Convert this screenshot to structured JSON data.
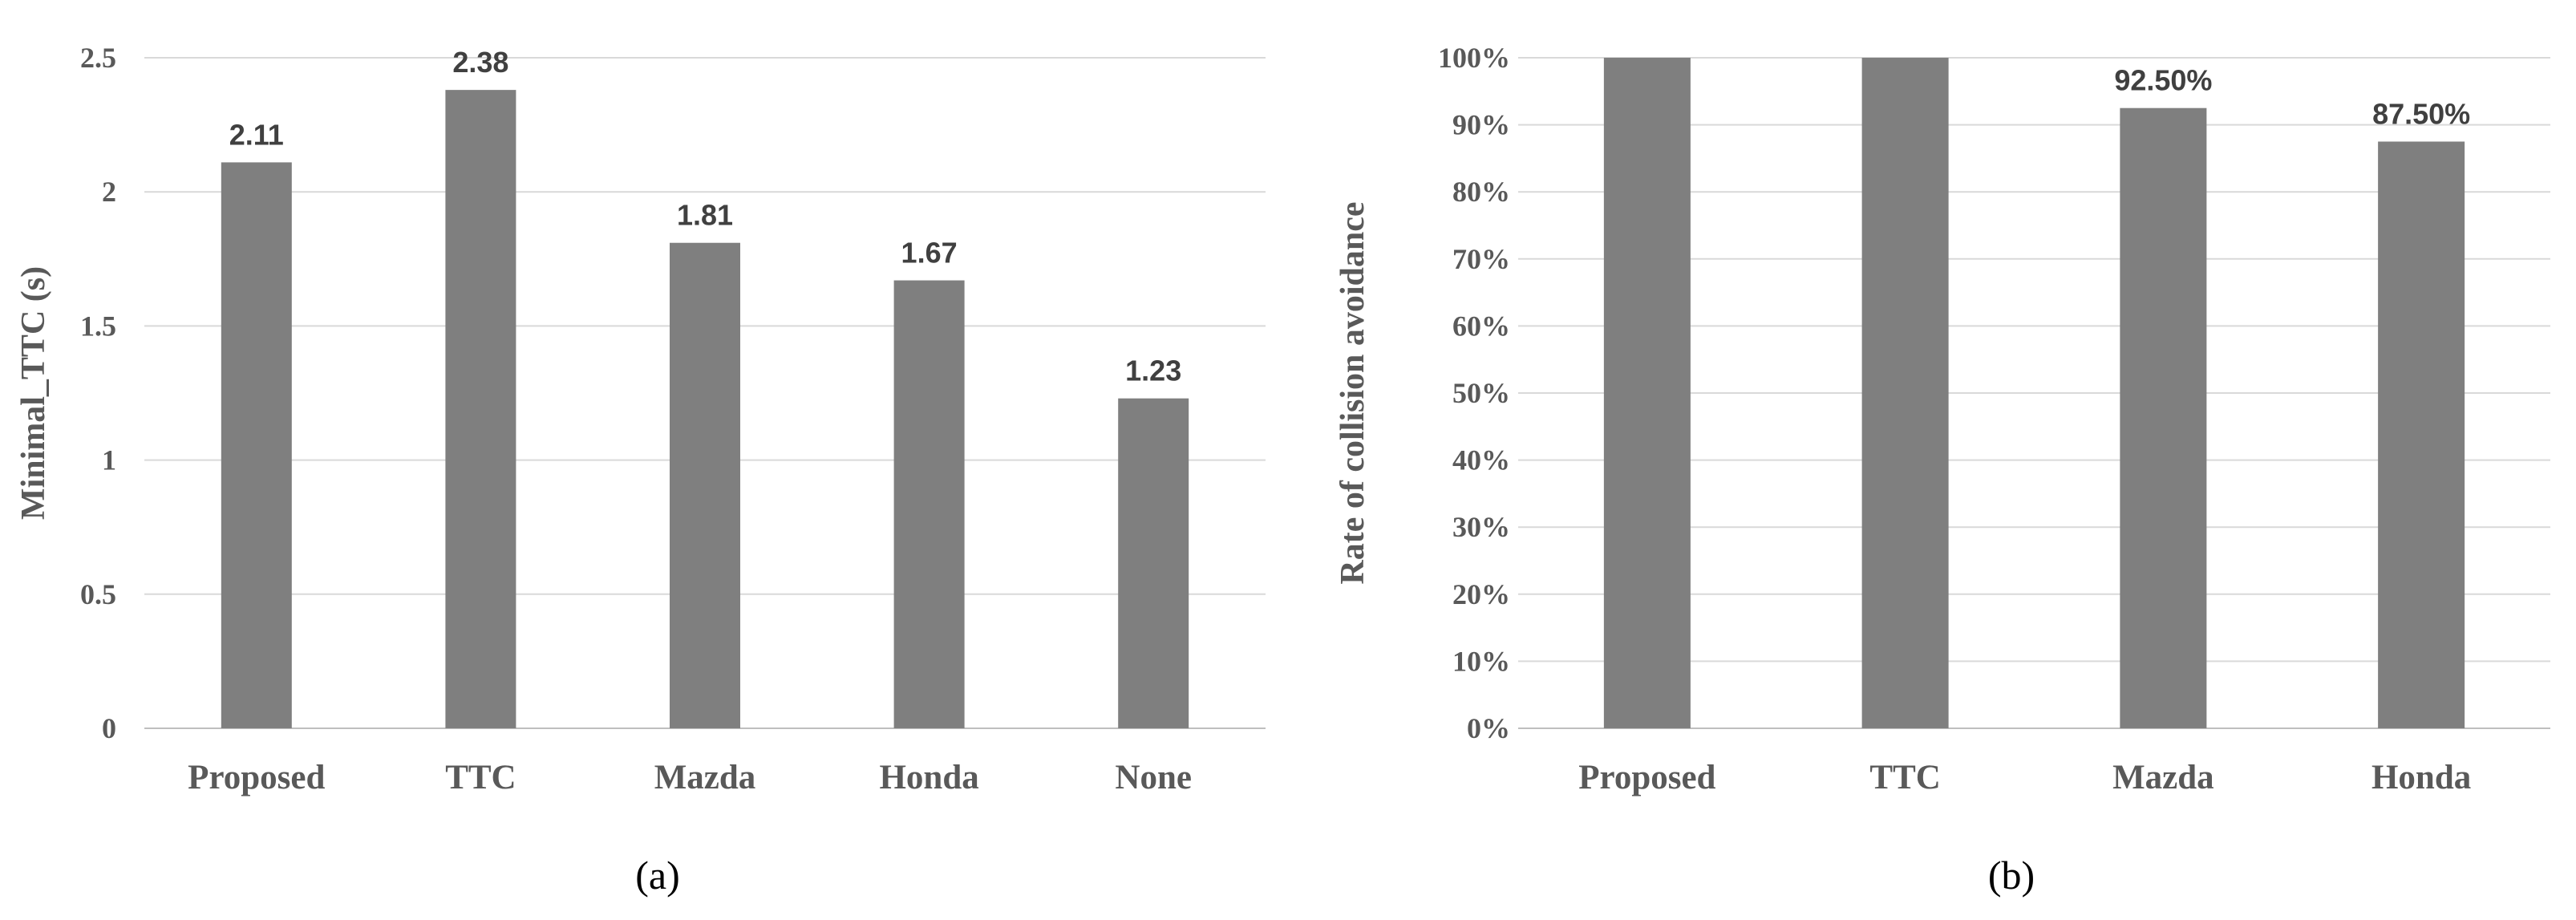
{
  "chart_data": [
    {
      "type": "bar",
      "categories": [
        "Proposed",
        "TTC",
        "Mazda",
        "Honda",
        "None"
      ],
      "values": [
        2.11,
        2.38,
        1.81,
        1.67,
        1.23
      ],
      "data_labels": [
        "2.11",
        "2.38",
        "1.81",
        "1.67",
        "1.23"
      ],
      "ylabel": "Minimal_TTC (s)",
      "ylim": [
        0,
        2.5
      ],
      "yticks": [
        "0",
        "0.5",
        "1",
        "1.5",
        "2",
        "2.5"
      ],
      "grid": true,
      "bar_color": "#7f7f7f",
      "caption": "(a)"
    },
    {
      "type": "bar",
      "categories": [
        "Proposed",
        "TTC",
        "Mazda",
        "Honda"
      ],
      "values": [
        100,
        100,
        92.5,
        87.5
      ],
      "data_labels": [
        "",
        "",
        "92.50%",
        "87.50%"
      ],
      "ylabel": "Rate of collision avoidance",
      "ylim": [
        0,
        100
      ],
      "yticks": [
        "0%",
        "10%",
        "20%",
        "30%",
        "40%",
        "50%",
        "60%",
        "70%",
        "80%",
        "90%",
        "100%"
      ],
      "grid": true,
      "bar_color": "#7f7f7f",
      "caption": "(b)"
    }
  ]
}
